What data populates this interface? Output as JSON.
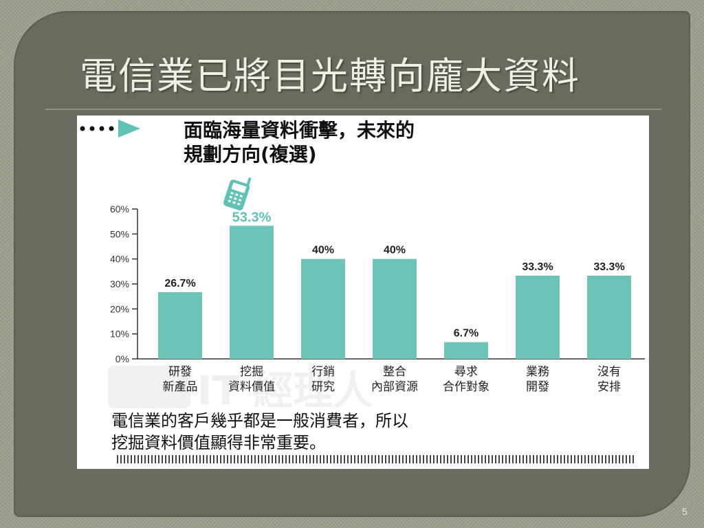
{
  "slide": {
    "title": "電信業已將目光轉向龐大資料",
    "page_number": "5"
  },
  "colors": {
    "bar": "#6cc3b8",
    "accent_teal": "#5ec3b4",
    "text_dark": "#111111",
    "slide_bg": "#696b5f"
  },
  "chart_data": {
    "type": "bar",
    "title_lines": [
      "面臨海量資料衝擊，未來的",
      "規劃方向(複選)"
    ],
    "categories": [
      [
        "研發",
        "新產品"
      ],
      [
        "挖掘",
        "資料價值"
      ],
      [
        "行銷",
        "研究"
      ],
      [
        "整合",
        "內部資源"
      ],
      [
        "尋求",
        "合作對象"
      ],
      [
        "業務",
        "開發"
      ],
      [
        "沒有",
        "安排"
      ]
    ],
    "values": [
      26.7,
      53.3,
      40,
      40,
      6.7,
      33.3,
      33.3
    ],
    "data_labels": [
      "26.7%",
      "53.3%",
      "40%",
      "40%",
      "6.7%",
      "33.3%",
      "33.3%"
    ],
    "highlight_index": 1,
    "ylim": [
      0,
      60
    ],
    "yticks": [
      "0%",
      "10%",
      "20%",
      "30%",
      "40%",
      "50%",
      "60%"
    ],
    "grid": false,
    "legend": "none",
    "caption_lines": [
      "電信業的客戶幾乎都是一般消費者，所以",
      "挖掘資料價值顯得非常重要。"
    ],
    "watermark": "CIO IT 經理人"
  }
}
